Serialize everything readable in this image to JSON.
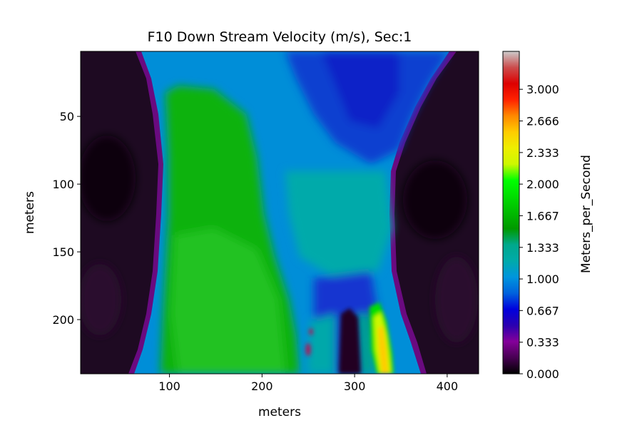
{
  "chart_data": {
    "type": "heatmap",
    "title": "F10 Down Stream Velocity (m/s), Sec:1",
    "xlabel": "meters",
    "ylabel": "meters",
    "xlim": [
      4,
      434
    ],
    "ylim": [
      240,
      2
    ],
    "y_axis_inverted": true,
    "x_ticks": [
      100,
      200,
      300,
      400
    ],
    "y_ticks": [
      50,
      100,
      150,
      200
    ],
    "x_tick_labels": [
      "100",
      "200",
      "300",
      "400"
    ],
    "y_tick_labels": [
      "50",
      "100",
      "150",
      "200"
    ],
    "colorbar": {
      "label": "Meters_per_Second",
      "range": [
        0,
        3.4
      ],
      "ticks": [
        0.0,
        0.333,
        0.667,
        1.0,
        1.333,
        1.667,
        2.0,
        2.333,
        2.666,
        3.0
      ],
      "tick_labels": [
        "0.000",
        "0.333",
        "0.667",
        "1.000",
        "1.333",
        "1.667",
        "2.000",
        "2.333",
        "2.666",
        "3.000"
      ],
      "colormap": "nipy_spectral"
    },
    "channel_edges_m": {
      "rows_y": [
        2,
        50,
        80,
        130,
        170,
        200,
        240
      ],
      "left_bank_x": [
        74,
        84,
        88,
        84,
        80,
        74,
        62
      ],
      "right_bank_x": [
        400,
        378,
        355,
        350,
        348,
        352,
        370
      ]
    },
    "velocity_zones": [
      {
        "region": "left-center core",
        "x_range": [
          88,
          230
        ],
        "y_range": [
          30,
          240
        ],
        "velocity": 1.85
      },
      {
        "region": "upper right pool",
        "x_range": [
          230,
          380
        ],
        "y_range": [
          2,
          90
        ],
        "velocity": 0.7
      },
      {
        "region": "mid channel",
        "x_range": [
          230,
          340
        ],
        "y_range": [
          90,
          170
        ],
        "velocity": 1.2
      },
      {
        "region": "jet near right bank",
        "x_range": [
          315,
          345
        ],
        "y_range": [
          185,
          240
        ],
        "velocity": 2.45
      },
      {
        "region": "bar behind pier",
        "x_range": [
          280,
          305
        ],
        "y_range": [
          188,
          240
        ],
        "velocity": 0.1
      }
    ]
  }
}
